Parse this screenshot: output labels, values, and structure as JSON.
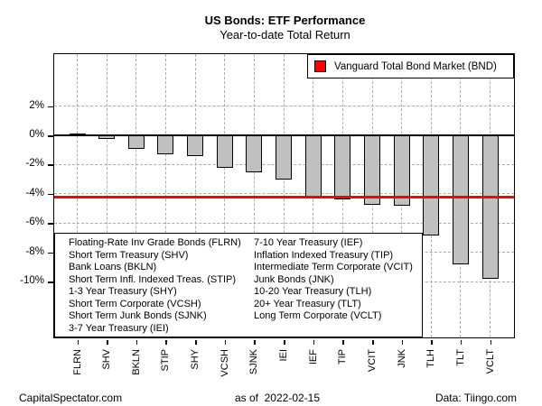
{
  "header": {
    "title": "US Bonds: ETF Performance",
    "subtitle": "Year-to-date Total Return"
  },
  "legend": {
    "label": "Vanguard Total Bond Market (BND)",
    "marker_color": "#ff0000"
  },
  "key_box": {
    "left_column": [
      "Floating-Rate Inv Grade Bonds (FLRN)",
      "Short Term Treasury (SHV)",
      "Bank Loans (BKLN)",
      "Short Term Infl. Indexed Treas. (STIP)",
      "1-3 Year Treasury (SHY)",
      "Short Term Corporate (VCSH)",
      "Short Term Junk Bonds (SJNK)",
      "3-7 Year Treasury (IEI)"
    ],
    "right_column": [
      "7-10 Year Treasury (IEF)",
      "Inflation Indexed Treasury (TIP)",
      "Intermediate Term Corporate (VCIT)",
      "Junk Bonds (JNK)",
      "10-20 Year Treasury (TLH)",
      "20+ Year Treasury (TLT)",
      "Long Term Corporate (VCLT)"
    ]
  },
  "footer": {
    "left": "CapitalSpectator.com",
    "center": "as of  2022-02-15",
    "right": "Data: Tiingo.com"
  },
  "chart_data": {
    "type": "bar",
    "title": "US Bonds: ETF Performance",
    "subtitle": "Year-to-date Total Return",
    "categories": [
      "FLRN",
      "SHV",
      "BKLN",
      "STIP",
      "SHY",
      "VCSH",
      "SJNK",
      "IEI",
      "IEF",
      "TIP",
      "VCIT",
      "JNK",
      "TLH",
      "TLT",
      "VCLT"
    ],
    "values": [
      0.1,
      -0.25,
      -0.95,
      -1.3,
      -1.45,
      -2.25,
      -2.5,
      -3.05,
      -4.3,
      -4.4,
      -4.75,
      -4.8,
      -6.85,
      -8.8,
      -9.8
    ],
    "reference_line": {
      "label": "Vanguard Total Bond Market (BND)",
      "value": -4.2,
      "color": "#ff0000"
    },
    "y_ticks": [
      2,
      0,
      -2,
      -4,
      -6,
      -8,
      -10
    ],
    "y_tick_labels": [
      "2%",
      "0%",
      "-2%",
      "-4%",
      "-6%",
      "-8%",
      "-10%"
    ],
    "ylim": [
      -13.8,
      6.2
    ],
    "xlabel": "",
    "ylabel": "",
    "grid": true,
    "legend_position": "top-right",
    "bar_color": "#c0c0c0",
    "bar_edge_color": "#000000",
    "zero_line_color": "#000000"
  }
}
